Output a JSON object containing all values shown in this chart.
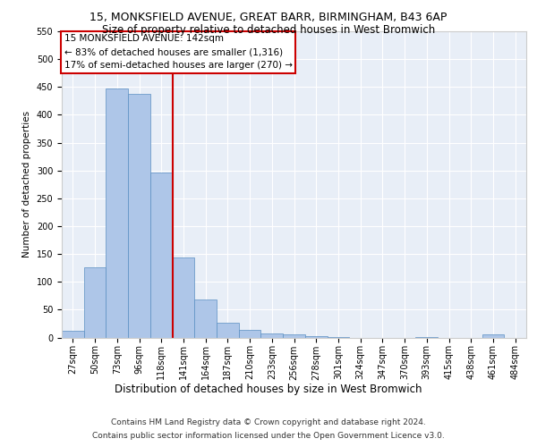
{
  "title1": "15, MONKSFIELD AVENUE, GREAT BARR, BIRMINGHAM, B43 6AP",
  "title2": "Size of property relative to detached houses in West Bromwich",
  "xlabel": "Distribution of detached houses by size in West Bromwich",
  "ylabel": "Number of detached properties",
  "footnote1": "Contains HM Land Registry data © Crown copyright and database right 2024.",
  "footnote2": "Contains public sector information licensed under the Open Government Licence v3.0.",
  "categories": [
    "27sqm",
    "50sqm",
    "73sqm",
    "96sqm",
    "118sqm",
    "141sqm",
    "164sqm",
    "187sqm",
    "210sqm",
    "233sqm",
    "256sqm",
    "278sqm",
    "301sqm",
    "324sqm",
    "347sqm",
    "370sqm",
    "393sqm",
    "415sqm",
    "438sqm",
    "461sqm",
    "484sqm"
  ],
  "values": [
    12,
    126,
    447,
    438,
    297,
    144,
    68,
    27,
    13,
    8,
    5,
    2,
    1,
    0,
    0,
    0,
    1,
    0,
    0,
    6,
    0
  ],
  "bar_color": "#aec6e8",
  "bar_edge_color": "#5a8fc2",
  "vline_color": "#cc0000",
  "vline_x": 4.5,
  "annotation_title": "15 MONKSFIELD AVENUE: 142sqm",
  "annotation_line1": "← 83% of detached houses are smaller (1,316)",
  "annotation_line2": "17% of semi-detached houses are larger (270) →",
  "annotation_box_color": "#ffffff",
  "annotation_box_edge": "#cc0000",
  "ylim": [
    0,
    550
  ],
  "yticks": [
    0,
    50,
    100,
    150,
    200,
    250,
    300,
    350,
    400,
    450,
    500,
    550
  ],
  "background_color": "#e8eef7",
  "fig_background": "#ffffff",
  "title1_fontsize": 9,
  "title2_fontsize": 8.5,
  "ylabel_fontsize": 7.5,
  "xlabel_fontsize": 8.5,
  "tick_fontsize": 7,
  "annotation_fontsize": 7.5,
  "footnote_fontsize": 6.5
}
